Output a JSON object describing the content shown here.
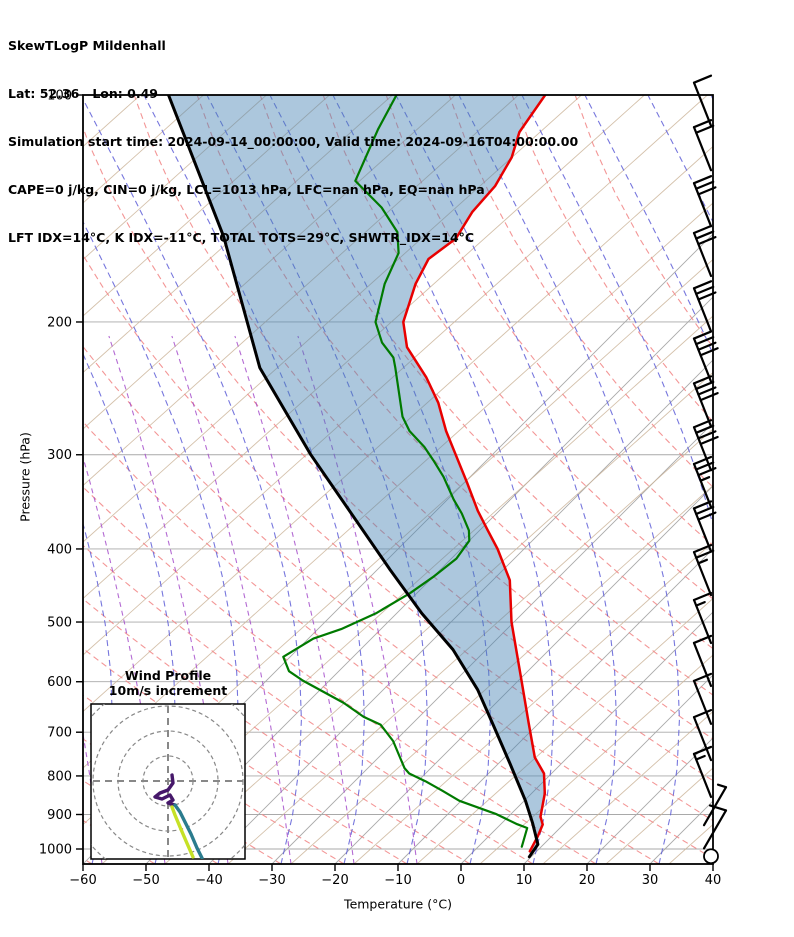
{
  "header": {
    "line1": "SkewTLogP Mildenhall",
    "line2": "Lat: 52.36   Lon: 0.49",
    "line3": "Simulation start time: 2024-09-14_00:00:00, Valid time: 2024-09-16T04:00:00.00",
    "line4": "CAPE=0 j/kg, CIN=0 j/kg, LCL=1013 hPa, LFC=nan hPa, EQ=nan hPa",
    "line5": "LFT IDX=14°C, K IDX=-11°C, TOTAL TOTS=29°C, SHWTR_IDX=14°C"
  },
  "chart_data": {
    "type": "skewt-logp",
    "station": "Mildenhall",
    "x_axis": {
      "label": "Temperature (°C)",
      "min": -60,
      "max": 40,
      "ticks": [
        -60,
        -50,
        -40,
        -30,
        -20,
        -10,
        0,
        10,
        20,
        30,
        40
      ],
      "tick_labels": [
        "−60",
        "−50",
        "−40",
        "−30",
        "−20",
        "−10",
        "0",
        "10",
        "20",
        "30",
        "40"
      ]
    },
    "y_axis": {
      "label": "Pressure (hPa)",
      "scale": "log",
      "min": 100,
      "max": 1050,
      "ticks": [
        100,
        200,
        300,
        400,
        500,
        600,
        700,
        800,
        900,
        1000
      ]
    },
    "skew_isotherm_deg": 45,
    "colors": {
      "temperature": "#e80000",
      "dewpoint": "#007a00",
      "parcel": "#000000",
      "cape_shade": "#4682b4",
      "isotherm": "#a9a9a9",
      "pressure_grid": "#a9a9a9",
      "dry_adiabat_solid": "#cdb69c",
      "dry_adiabat_dashed": "#f28b8b",
      "moist_adiabat_dashed": "#5f5fd7",
      "mixing_ratio_dashed": "#a146c8",
      "barb": "#000000"
    },
    "profiles": {
      "temperature": [
        [
          100,
          -108.7
        ],
        [
          112,
          -106.9
        ],
        [
          121,
          -104.1
        ],
        [
          132,
          -102.2
        ],
        [
          143,
          -101.7
        ],
        [
          155,
          -100.1
        ],
        [
          165,
          -101.2
        ],
        [
          178,
          -99.3
        ],
        [
          200,
          -95.2
        ],
        [
          216,
          -90.6
        ],
        [
          237,
          -82.7
        ],
        [
          256,
          -76.8
        ],
        [
          279,
          -71.1
        ],
        [
          300,
          -65.8
        ],
        [
          327,
          -59.5
        ],
        [
          356,
          -53.4
        ],
        [
          378,
          -48.7
        ],
        [
          400,
          -44.2
        ],
        [
          440,
          -37.3
        ],
        [
          500,
          -30.4
        ],
        [
          600,
          -19.3
        ],
        [
          680,
          -11.7
        ],
        [
          756,
          -5.2
        ],
        [
          794,
          -1.2
        ],
        [
          844,
          2.1
        ],
        [
          906,
          5.1
        ],
        [
          928,
          6.7
        ],
        [
          962,
          7.8
        ],
        [
          1007,
          8.9
        ]
      ],
      "dewpoint": [
        [
          100,
          -132.3
        ],
        [
          111,
          -129.8
        ],
        [
          130,
          -125.2
        ],
        [
          141,
          -116.8
        ],
        [
          152,
          -110.4
        ],
        [
          162,
          -106.9
        ],
        [
          178,
          -104.2
        ],
        [
          200,
          -99.6
        ],
        [
          213,
          -95.3
        ],
        [
          223,
          -91.1
        ],
        [
          230,
          -89.2
        ],
        [
          267,
          -80.3
        ],
        [
          279,
          -76.9
        ],
        [
          293,
          -72.0
        ],
        [
          305,
          -68.5
        ],
        [
          321,
          -64.2
        ],
        [
          344,
          -59.0
        ],
        [
          359,
          -55.5
        ],
        [
          378,
          -51.7
        ],
        [
          390,
          -50.0
        ],
        [
          412,
          -49.2
        ],
        [
          436,
          -50.0
        ],
        [
          458,
          -51.1
        ],
        [
          487,
          -53.3
        ],
        [
          511,
          -56.3
        ],
        [
          526,
          -59.2
        ],
        [
          556,
          -61.1
        ],
        [
          581,
          -57.9
        ],
        [
          598,
          -54.2
        ],
        [
          640,
          -44.2
        ],
        [
          668,
          -38.8
        ],
        [
          684,
          -34.9
        ],
        [
          719,
          -30.3
        ],
        [
          754,
          -26.8
        ],
        [
          781,
          -24.2
        ],
        [
          794,
          -22.6
        ],
        [
          813,
          -18.8
        ],
        [
          837,
          -14.6
        ],
        [
          863,
          -10.3
        ],
        [
          898,
          -2.5
        ],
        [
          927,
          2.6
        ],
        [
          938,
          4.8
        ],
        [
          993,
          6.9
        ]
      ],
      "parcel": [
        [
          100,
          -168.5
        ],
        [
          154,
          -137.3
        ],
        [
          230,
          -110.7
        ],
        [
          300,
          -88.8
        ],
        [
          426,
          -58.0
        ],
        [
          487,
          -46.0
        ],
        [
          544,
          -35.3
        ],
        [
          615,
          -25.0
        ],
        [
          688,
          -16.6
        ],
        [
          770,
          -8.2
        ],
        [
          863,
          0.2
        ],
        [
          923,
          4.8
        ],
        [
          986,
          9.1
        ],
        [
          1024,
          9.7
        ]
      ]
    },
    "cape_shading": {
      "between": [
        "parcel",
        "temperature"
      ],
      "opacity": 0.45
    },
    "wind_barbs": [
      {
        "p": 103,
        "full": 1,
        "half": 0
      },
      {
        "p": 118,
        "full": 2,
        "half": 0
      },
      {
        "p": 140,
        "full": 3,
        "half": 0
      },
      {
        "p": 163,
        "full": 3,
        "half": 0
      },
      {
        "p": 193,
        "full": 3,
        "half": 0
      },
      {
        "p": 225,
        "full": 4,
        "half": 0
      },
      {
        "p": 258,
        "full": 4,
        "half": 0
      },
      {
        "p": 295,
        "full": 4,
        "half": 0
      },
      {
        "p": 330,
        "full": 3,
        "half": 1
      },
      {
        "p": 378,
        "full": 3,
        "half": 0
      },
      {
        "p": 432,
        "full": 2,
        "half": 1
      },
      {
        "p": 500,
        "full": 1,
        "half": 1
      },
      {
        "p": 570,
        "full": 1,
        "half": 0
      },
      {
        "p": 640,
        "full": 1,
        "half": 0
      },
      {
        "p": 715,
        "full": 1,
        "half": 0
      },
      {
        "p": 800,
        "full": 1,
        "half": 1
      },
      {
        "p": 880,
        "full": 0,
        "half": 1,
        "dir": "ne"
      },
      {
        "p": 945,
        "full": 1,
        "half": 0,
        "dir": "ne"
      },
      {
        "p": 1013,
        "calm": true
      }
    ],
    "hodograph": {
      "title_line1": "Wind Profile",
      "title_line2": "10m/s increment",
      "ring_interval_ms": 10,
      "rings_ms": [
        10,
        20,
        30,
        40
      ],
      "trace_ms": {
        "low_purple": [
          [
            1.6,
            2.4
          ],
          [
            2,
            -0.8
          ],
          [
            0,
            -3.6
          ],
          [
            -3.2,
            -4.8
          ],
          [
            -5.2,
            -6.4
          ],
          [
            -2.4,
            -7.2
          ],
          [
            0.8,
            -5.6
          ],
          [
            2,
            -7.6
          ],
          [
            0,
            -8.8
          ],
          [
            2.8,
            -9.6
          ]
        ],
        "mid_teal": [
          [
            2.8,
            -9.6
          ],
          [
            4.8,
            -12.4
          ],
          [
            6.8,
            -16.4
          ],
          [
            9.2,
            -21.2
          ],
          [
            11.6,
            -26.8
          ],
          [
            13.6,
            -30.8
          ]
        ],
        "high_yellow": [
          [
            1.6,
            -10.4
          ],
          [
            2.8,
            -13.6
          ],
          [
            4.8,
            -18.4
          ],
          [
            7.2,
            -24.0
          ],
          [
            10.0,
            -30.4
          ]
        ]
      },
      "trace_colors": {
        "low_purple": "#46186a",
        "mid_teal": "#2b7c8e",
        "high_yellow": "#c6e126"
      }
    }
  }
}
